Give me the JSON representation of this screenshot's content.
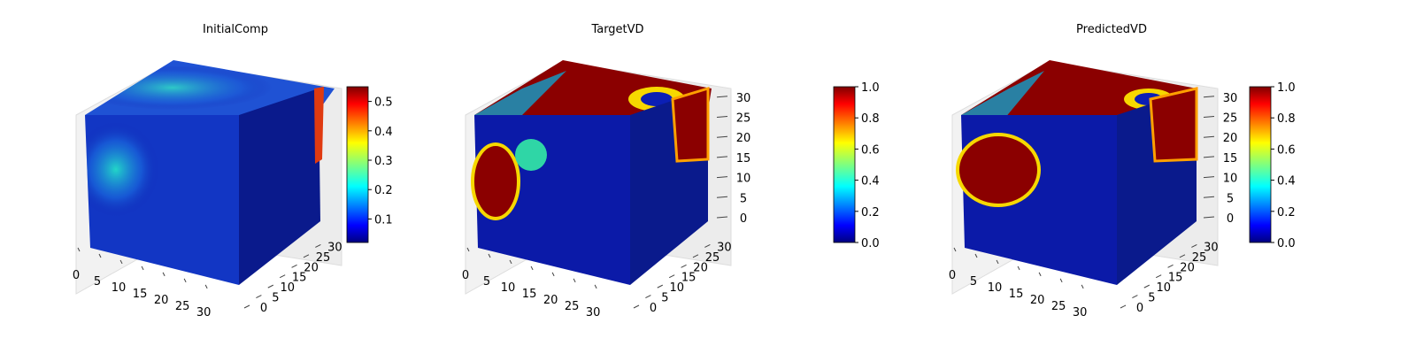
{
  "chart_data": [
    {
      "type": "heatmap",
      "title": "InitialComp",
      "x_ticks": [
        "0",
        "5",
        "10",
        "15",
        "20",
        "25",
        "30"
      ],
      "y_ticks": [
        "0",
        "5",
        "10",
        "15",
        "20",
        "25",
        "30"
      ],
      "z_ticks": [],
      "colorbar": {
        "colormap": "jet",
        "min": 0.02,
        "max": 0.55,
        "ticks": [
          "0.1",
          "0.2",
          "0.3",
          "0.4",
          "0.5"
        ],
        "tick_values": [
          0.1,
          0.2,
          0.3,
          0.4,
          0.5
        ]
      }
    },
    {
      "type": "heatmap",
      "title": "TargetVD",
      "x_ticks": [
        "0",
        "5",
        "10",
        "15",
        "20",
        "25",
        "30"
      ],
      "y_ticks": [
        "0",
        "5",
        "10",
        "15",
        "20",
        "25",
        "30"
      ],
      "z_ticks": [
        "0",
        "5",
        "10",
        "15",
        "20",
        "25",
        "30"
      ],
      "colorbar": {
        "colormap": "jet",
        "min": 0.0,
        "max": 1.0,
        "ticks": [
          "0.0",
          "0.2",
          "0.4",
          "0.6",
          "0.8",
          "1.0"
        ],
        "tick_values": [
          0.0,
          0.2,
          0.4,
          0.6,
          0.8,
          1.0
        ]
      }
    },
    {
      "type": "heatmap",
      "title": "PredictedVD",
      "x_ticks": [
        "0",
        "5",
        "10",
        "15",
        "20",
        "25",
        "30"
      ],
      "y_ticks": [
        "0",
        "5",
        "10",
        "15",
        "20",
        "25",
        "30"
      ],
      "z_ticks": [
        "0",
        "5",
        "10",
        "15",
        "20",
        "25",
        "30"
      ],
      "colorbar": {
        "colormap": "jet",
        "min": 0.0,
        "max": 1.0,
        "ticks": [
          "0.0",
          "0.2",
          "0.4",
          "0.6",
          "0.8",
          "1.0"
        ],
        "tick_values": [
          0.0,
          0.2,
          0.4,
          0.6,
          0.8,
          1.0
        ]
      }
    }
  ]
}
